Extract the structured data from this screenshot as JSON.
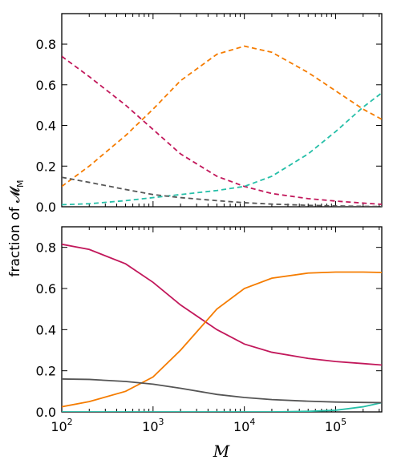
{
  "chart_data": [
    {
      "type": "line",
      "panel": "top",
      "line_style": "dashed",
      "xscale": "log",
      "xlim": [
        100,
        320000
      ],
      "ylim": [
        0,
        0.95
      ],
      "yticks": [
        0.0,
        0.2,
        0.4,
        0.6,
        0.8
      ],
      "ytick_labels": [
        "0.0",
        "0.2",
        "0.4",
        "0.6",
        "0.8"
      ],
      "ylabel": "fraction of 𝓜",
      "ylabel_sub": "M",
      "grid": false,
      "series": [
        {
          "color": "#c2185b",
          "x": [
            100,
            200,
            500,
            1000,
            2000,
            5000,
            10000,
            20000,
            50000,
            100000,
            200000,
            320000
          ],
          "y": [
            0.74,
            0.64,
            0.5,
            0.38,
            0.26,
            0.15,
            0.1,
            0.065,
            0.04,
            0.028,
            0.018,
            0.012
          ]
        },
        {
          "color": "#f57c00",
          "x": [
            100,
            200,
            500,
            1000,
            2000,
            5000,
            10000,
            20000,
            50000,
            100000,
            200000,
            320000
          ],
          "y": [
            0.1,
            0.2,
            0.35,
            0.48,
            0.62,
            0.75,
            0.79,
            0.76,
            0.66,
            0.57,
            0.48,
            0.43
          ]
        },
        {
          "color": "#26bfa8",
          "x": [
            100,
            200,
            500,
            1000,
            2000,
            5000,
            10000,
            20000,
            50000,
            100000,
            200000,
            320000
          ],
          "y": [
            0.01,
            0.015,
            0.03,
            0.045,
            0.06,
            0.08,
            0.1,
            0.15,
            0.26,
            0.37,
            0.49,
            0.56
          ]
        },
        {
          "color": "#555555",
          "x": [
            100,
            200,
            500,
            1000,
            2000,
            5000,
            10000,
            20000,
            50000,
            100000,
            200000,
            320000
          ],
          "y": [
            0.145,
            0.12,
            0.085,
            0.06,
            0.045,
            0.03,
            0.02,
            0.013,
            0.007,
            0.004,
            0.002,
            0.001
          ]
        }
      ]
    },
    {
      "type": "line",
      "panel": "bottom",
      "line_style": "solid",
      "xscale": "log",
      "xlim": [
        100,
        320000
      ],
      "ylim": [
        0,
        0.9
      ],
      "yticks": [
        0.0,
        0.2,
        0.4,
        0.6,
        0.8
      ],
      "ytick_labels": [
        "0.0",
        "0.2",
        "0.4",
        "0.6",
        "0.8"
      ],
      "xlabel": "M",
      "xtick_labels": [
        {
          "base": "10",
          "exp": "2",
          "value": 100
        },
        {
          "base": "10",
          "exp": "3",
          "value": 1000
        },
        {
          "base": "10",
          "exp": "4",
          "value": 10000
        },
        {
          "base": "10",
          "exp": "5",
          "value": 100000
        }
      ],
      "grid": false,
      "series": [
        {
          "color": "#c2185b",
          "x": [
            100,
            200,
            500,
            1000,
            2000,
            5000,
            10000,
            20000,
            50000,
            100000,
            200000,
            320000
          ],
          "y": [
            0.815,
            0.79,
            0.72,
            0.63,
            0.52,
            0.4,
            0.33,
            0.29,
            0.26,
            0.245,
            0.235,
            0.228
          ]
        },
        {
          "color": "#f57c00",
          "x": [
            100,
            200,
            500,
            1000,
            2000,
            5000,
            10000,
            20000,
            50000,
            100000,
            200000,
            320000
          ],
          "y": [
            0.025,
            0.05,
            0.1,
            0.17,
            0.3,
            0.5,
            0.6,
            0.65,
            0.675,
            0.68,
            0.68,
            0.678
          ]
        },
        {
          "color": "#26bfa8",
          "x": [
            100,
            200,
            500,
            1000,
            2000,
            5000,
            10000,
            20000,
            50000,
            100000,
            200000,
            320000
          ],
          "y": [
            0.0,
            0.0,
            0.0,
            0.0,
            0.0,
            0.0,
            0.0,
            0.0,
            0.003,
            0.008,
            0.025,
            0.045
          ]
        },
        {
          "color": "#555555",
          "x": [
            100,
            200,
            500,
            1000,
            2000,
            5000,
            10000,
            20000,
            50000,
            100000,
            200000,
            320000
          ],
          "y": [
            0.16,
            0.158,
            0.148,
            0.135,
            0.115,
            0.085,
            0.07,
            0.06,
            0.052,
            0.048,
            0.046,
            0.045
          ]
        }
      ]
    }
  ]
}
